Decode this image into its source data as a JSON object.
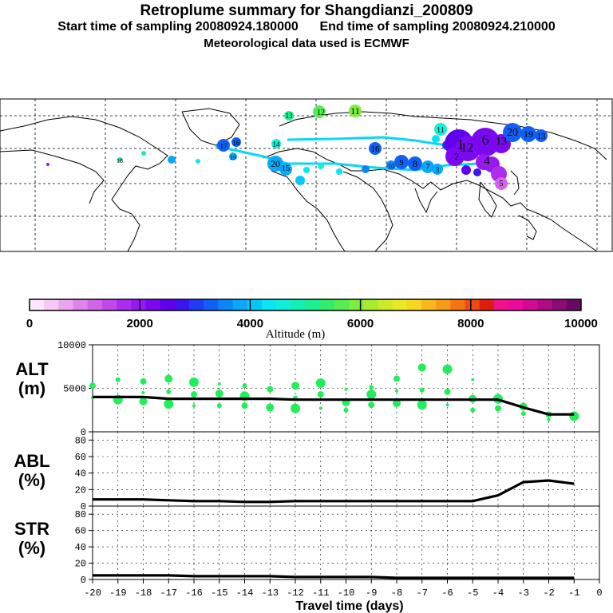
{
  "header": {
    "title": "Retroplume summary for Shangdianzi_200809",
    "start_label": "Start time of sampling 20080924.180000",
    "end_label": "End time of sampling 20080924.210000",
    "met_label": "Meteorological data used is ECMWF"
  },
  "colorbar": {
    "labels": [
      "0",
      "2000",
      "4000",
      "6000",
      "8000",
      "10000"
    ],
    "title": "Altitude (m)",
    "colors": [
      "#ffe8ff",
      "#f5c8f5",
      "#eaa5ef",
      "#df84ea",
      "#d264ec",
      "#c248ee",
      "#ae2cf0",
      "#9818f2",
      "#7c08f0",
      "#6000ec",
      "#3c14f0",
      "#1e3cf4",
      "#1060f8",
      "#0c84fa",
      "#08a8fa",
      "#06c8f8",
      "#08e6f2",
      "#10f0d8",
      "#14f0b4",
      "#1cf090",
      "#30ee6c",
      "#54ee50",
      "#7cee3c",
      "#a6ec30",
      "#ccea28",
      "#eaea24",
      "#f6d620",
      "#f8b81c",
      "#f89a18",
      "#f67414",
      "#f04a10",
      "#e01e10",
      "#f4108c",
      "#ec0a9c",
      "#d00a92",
      "#b00a84",
      "#8c0a74",
      "#680a64"
    ]
  },
  "map": {
    "labels": [
      "11",
      "12",
      "13",
      "14",
      "15",
      "16",
      "17",
      "18",
      "19",
      "20",
      "1",
      "2",
      "3",
      "4",
      "5",
      "6",
      "7",
      "8",
      "9",
      "10"
    ]
  },
  "chart_data": [
    {
      "type": "line",
      "name": "ALT",
      "ylabel": "ALT (m)",
      "ylim": [
        0,
        10000
      ],
      "yticks": [
        "0",
        "5000",
        "10000"
      ],
      "x": [
        -20,
        -19,
        -18,
        -17,
        -16,
        -15,
        -14,
        -13,
        -12,
        -11,
        -10,
        -9,
        -8,
        -7,
        -6,
        -5,
        -4,
        -3,
        -2,
        -1
      ],
      "values": [
        4000,
        4000,
        4000,
        3800,
        3800,
        3800,
        3800,
        3800,
        3700,
        3700,
        3700,
        3700,
        3700,
        3700,
        3700,
        3700,
        3700,
        2800,
        2000,
        2000
      ],
      "plume_points": [
        {
          "x": -20,
          "y": 3900
        },
        {
          "x": -20,
          "y": 5300
        },
        {
          "x": -19,
          "y": 3700
        },
        {
          "x": -19,
          "y": 6000
        },
        {
          "x": -18,
          "y": 3500
        },
        {
          "x": -18,
          "y": 4500
        },
        {
          "x": -18,
          "y": 5800
        },
        {
          "x": -17,
          "y": 3200
        },
        {
          "x": -17,
          "y": 4600
        },
        {
          "x": -17,
          "y": 6100
        },
        {
          "x": -16,
          "y": 3000
        },
        {
          "x": -16,
          "y": 4300
        },
        {
          "x": -16,
          "y": 5700
        },
        {
          "x": -15,
          "y": 3000
        },
        {
          "x": -15,
          "y": 4400
        },
        {
          "x": -15,
          "y": 5500
        },
        {
          "x": -14,
          "y": 3000
        },
        {
          "x": -14,
          "y": 4100
        },
        {
          "x": -14,
          "y": 5300
        },
        {
          "x": -13,
          "y": 2800
        },
        {
          "x": -13,
          "y": 3800
        },
        {
          "x": -13,
          "y": 4900
        },
        {
          "x": -12,
          "y": 2700
        },
        {
          "x": -12,
          "y": 3900
        },
        {
          "x": -12,
          "y": 5300
        },
        {
          "x": -11,
          "y": 2700
        },
        {
          "x": -11,
          "y": 4300
        },
        {
          "x": -11,
          "y": 5600
        },
        {
          "x": -10,
          "y": 2500
        },
        {
          "x": -10,
          "y": 3400
        },
        {
          "x": -10,
          "y": 4900
        },
        {
          "x": -9,
          "y": 3100
        },
        {
          "x": -9,
          "y": 4300
        },
        {
          "x": -9,
          "y": 5100
        },
        {
          "x": -8,
          "y": 3300
        },
        {
          "x": -8,
          "y": 4700
        },
        {
          "x": -8,
          "y": 6100
        },
        {
          "x": -7,
          "y": 3100
        },
        {
          "x": -7,
          "y": 4800
        },
        {
          "x": -7,
          "y": 7400
        },
        {
          "x": -6,
          "y": 3100
        },
        {
          "x": -6,
          "y": 4600
        },
        {
          "x": -6,
          "y": 7200
        },
        {
          "x": -5,
          "y": 2500
        },
        {
          "x": -5,
          "y": 3800
        },
        {
          "x": -5,
          "y": 6000
        },
        {
          "x": -4,
          "y": 2700
        },
        {
          "x": -4,
          "y": 3800
        },
        {
          "x": -3,
          "y": 2100
        },
        {
          "x": -3,
          "y": 2900
        },
        {
          "x": -2,
          "y": 1400
        },
        {
          "x": -2,
          "y": 2000
        },
        {
          "x": -1,
          "y": 1800
        }
      ]
    },
    {
      "type": "line",
      "name": "ABL",
      "ylabel": "ABL (%)",
      "ylim": [
        0,
        90
      ],
      "yticks": [
        "0",
        "20",
        "40",
        "60",
        "80"
      ],
      "x": [
        -20,
        -19,
        -18,
        -17,
        -16,
        -15,
        -14,
        -13,
        -12,
        -11,
        -10,
        -9,
        -8,
        -7,
        -6,
        -5,
        -4,
        -3,
        -2,
        -1
      ],
      "values": [
        8,
        8,
        8,
        7,
        6,
        6,
        5,
        5,
        6,
        6,
        6,
        6,
        6,
        6,
        6,
        6,
        13,
        29,
        31,
        27
      ]
    },
    {
      "type": "line",
      "name": "STR",
      "ylabel": "STR (%)",
      "ylim": [
        0,
        90
      ],
      "yticks": [
        "0",
        "20",
        "40",
        "60",
        "80"
      ],
      "x": [
        -20,
        -19,
        -18,
        -17,
        -16,
        -15,
        -14,
        -13,
        -12,
        -11,
        -10,
        -9,
        -8,
        -7,
        -6,
        -5,
        -4,
        -3,
        -2,
        -1
      ],
      "values": [
        5,
        5,
        5,
        5,
        4,
        4,
        4,
        4,
        3,
        3,
        3,
        3,
        2,
        2,
        2,
        2,
        2,
        2,
        2,
        2
      ]
    }
  ],
  "xaxis": {
    "ticks": [
      "-20",
      "-19",
      "-18",
      "-17",
      "-16",
      "-15",
      "-14",
      "-13",
      "-12",
      "-11",
      "-10",
      "-9",
      "-8",
      "-7",
      "-6",
      "-5",
      "-4",
      "-3",
      "-2",
      "-1",
      "0"
    ],
    "label": "Travel time (days)"
  }
}
